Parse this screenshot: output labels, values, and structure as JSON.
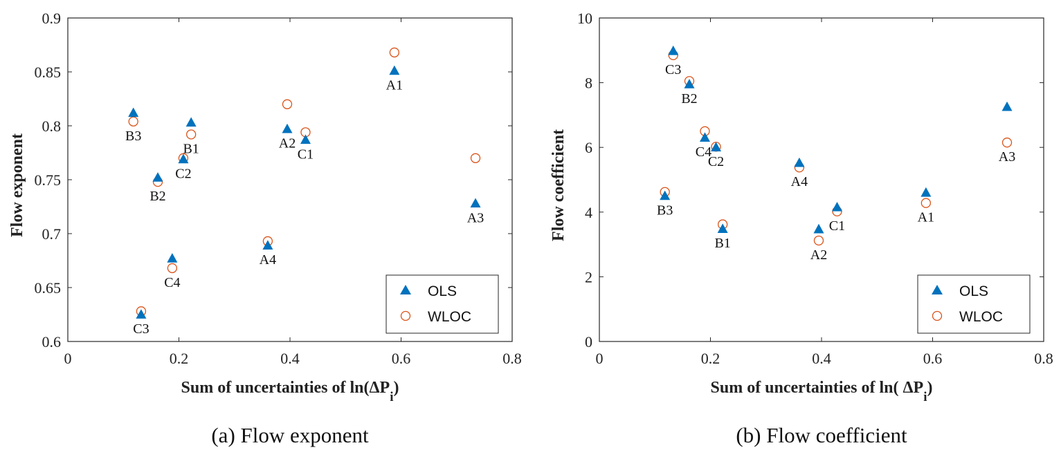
{
  "colors": {
    "ols": "#0072BD",
    "wloc": "#D95319",
    "axis": "#262626"
  },
  "chart_data": [
    {
      "type": "scatter",
      "xlabel": "Sum of uncertainties of ln(ΔP",
      "xlabel_sub": "i",
      "xlabel_close": ")",
      "ylabel": "Flow exponent",
      "caption": "(a) Flow exponent",
      "xlim": [
        0,
        0.8
      ],
      "ylim": [
        0.6,
        0.9
      ],
      "xticks": [
        0,
        0.2,
        0.4,
        0.6,
        0.8
      ],
      "xtick_labels": [
        "0",
        "0.2",
        "0.4",
        "0.6",
        "0.8"
      ],
      "yticks": [
        0.6,
        0.65,
        0.7,
        0.75,
        0.8,
        0.85,
        0.9
      ],
      "ytick_labels": [
        "0.6",
        "0.65",
        "0.7",
        "0.75",
        "0.8",
        "0.85",
        "0.9"
      ],
      "legend_position": "bottom-right",
      "points": [
        {
          "label": "A1",
          "x": 0.588,
          "ols": 0.851,
          "wloc": 0.868,
          "label_pos": "below"
        },
        {
          "label": "A2",
          "x": 0.395,
          "ols": 0.797,
          "wloc": 0.82,
          "label_pos": "below"
        },
        {
          "label": "A3",
          "x": 0.734,
          "ols": 0.728,
          "wloc": 0.77,
          "label_pos": "below"
        },
        {
          "label": "A4",
          "x": 0.36,
          "ols": 0.689,
          "wloc": 0.693,
          "label_pos": "below"
        },
        {
          "label": "B1",
          "x": 0.222,
          "ols": 0.803,
          "wloc": 0.792,
          "label_pos": "below"
        },
        {
          "label": "B2",
          "x": 0.162,
          "ols": 0.752,
          "wloc": 0.748,
          "label_pos": "below"
        },
        {
          "label": "B3",
          "x": 0.118,
          "ols": 0.812,
          "wloc": 0.804,
          "label_pos": "below"
        },
        {
          "label": "C1",
          "x": 0.428,
          "ols": 0.787,
          "wloc": 0.794,
          "label_pos": "below"
        },
        {
          "label": "C2",
          "x": 0.208,
          "ols": 0.769,
          "wloc": 0.77,
          "label_pos": "below"
        },
        {
          "label": "C3",
          "x": 0.132,
          "ols": 0.625,
          "wloc": 0.628,
          "label_pos": "below"
        },
        {
          "label": "C4",
          "x": 0.188,
          "ols": 0.677,
          "wloc": 0.668,
          "label_pos": "below"
        }
      ],
      "series": [
        {
          "name": "OLS",
          "marker": "triangle",
          "key": "ols"
        },
        {
          "name": "WLOC",
          "marker": "circle",
          "key": "wloc"
        }
      ]
    },
    {
      "type": "scatter",
      "xlabel": "Sum of uncertainties of ln( ΔP",
      "xlabel_sub": "i",
      "xlabel_close": ")",
      "ylabel": "Flow coefficient",
      "caption": "(b) Flow coefficient",
      "xlim": [
        0,
        0.8
      ],
      "ylim": [
        0,
        10
      ],
      "xticks": [
        0,
        0.2,
        0.4,
        0.6,
        0.8
      ],
      "xtick_labels": [
        "0",
        "0.2",
        "0.4",
        "0.6",
        "0.8"
      ],
      "yticks": [
        0,
        2,
        4,
        6,
        8,
        10
      ],
      "ytick_labels": [
        "0",
        "2",
        "4",
        "6",
        "8",
        "10"
      ],
      "legend_position": "bottom-right",
      "points": [
        {
          "label": "A1",
          "x": 0.588,
          "ols": 4.6,
          "wloc": 4.28,
          "label_pos": "below"
        },
        {
          "label": "A2",
          "x": 0.395,
          "ols": 3.47,
          "wloc": 3.12,
          "label_pos": "below"
        },
        {
          "label": "A3",
          "x": 0.734,
          "ols": 7.25,
          "wloc": 6.15,
          "label_pos": "below"
        },
        {
          "label": "A4",
          "x": 0.36,
          "ols": 5.52,
          "wloc": 5.38,
          "label_pos": "below"
        },
        {
          "label": "B1",
          "x": 0.222,
          "ols": 3.48,
          "wloc": 3.62,
          "label_pos": "below"
        },
        {
          "label": "B2",
          "x": 0.162,
          "ols": 7.95,
          "wloc": 8.05,
          "label_pos": "below"
        },
        {
          "label": "B3",
          "x": 0.118,
          "ols": 4.5,
          "wloc": 4.62,
          "label_pos": "below"
        },
        {
          "label": "C1",
          "x": 0.428,
          "ols": 4.15,
          "wloc": 4.02,
          "label_pos": "below"
        },
        {
          "label": "C2",
          "x": 0.21,
          "ols": 6.0,
          "wloc": 6.02,
          "label_pos": "below"
        },
        {
          "label": "C3",
          "x": 0.133,
          "ols": 8.98,
          "wloc": 8.85,
          "label_pos": "below"
        },
        {
          "label": "C4",
          "x": 0.19,
          "ols": 6.3,
          "wloc": 6.5,
          "label_pos": "left-below"
        }
      ],
      "series": [
        {
          "name": "OLS",
          "marker": "triangle",
          "key": "ols"
        },
        {
          "name": "WLOC",
          "marker": "circle",
          "key": "wloc"
        }
      ]
    }
  ]
}
